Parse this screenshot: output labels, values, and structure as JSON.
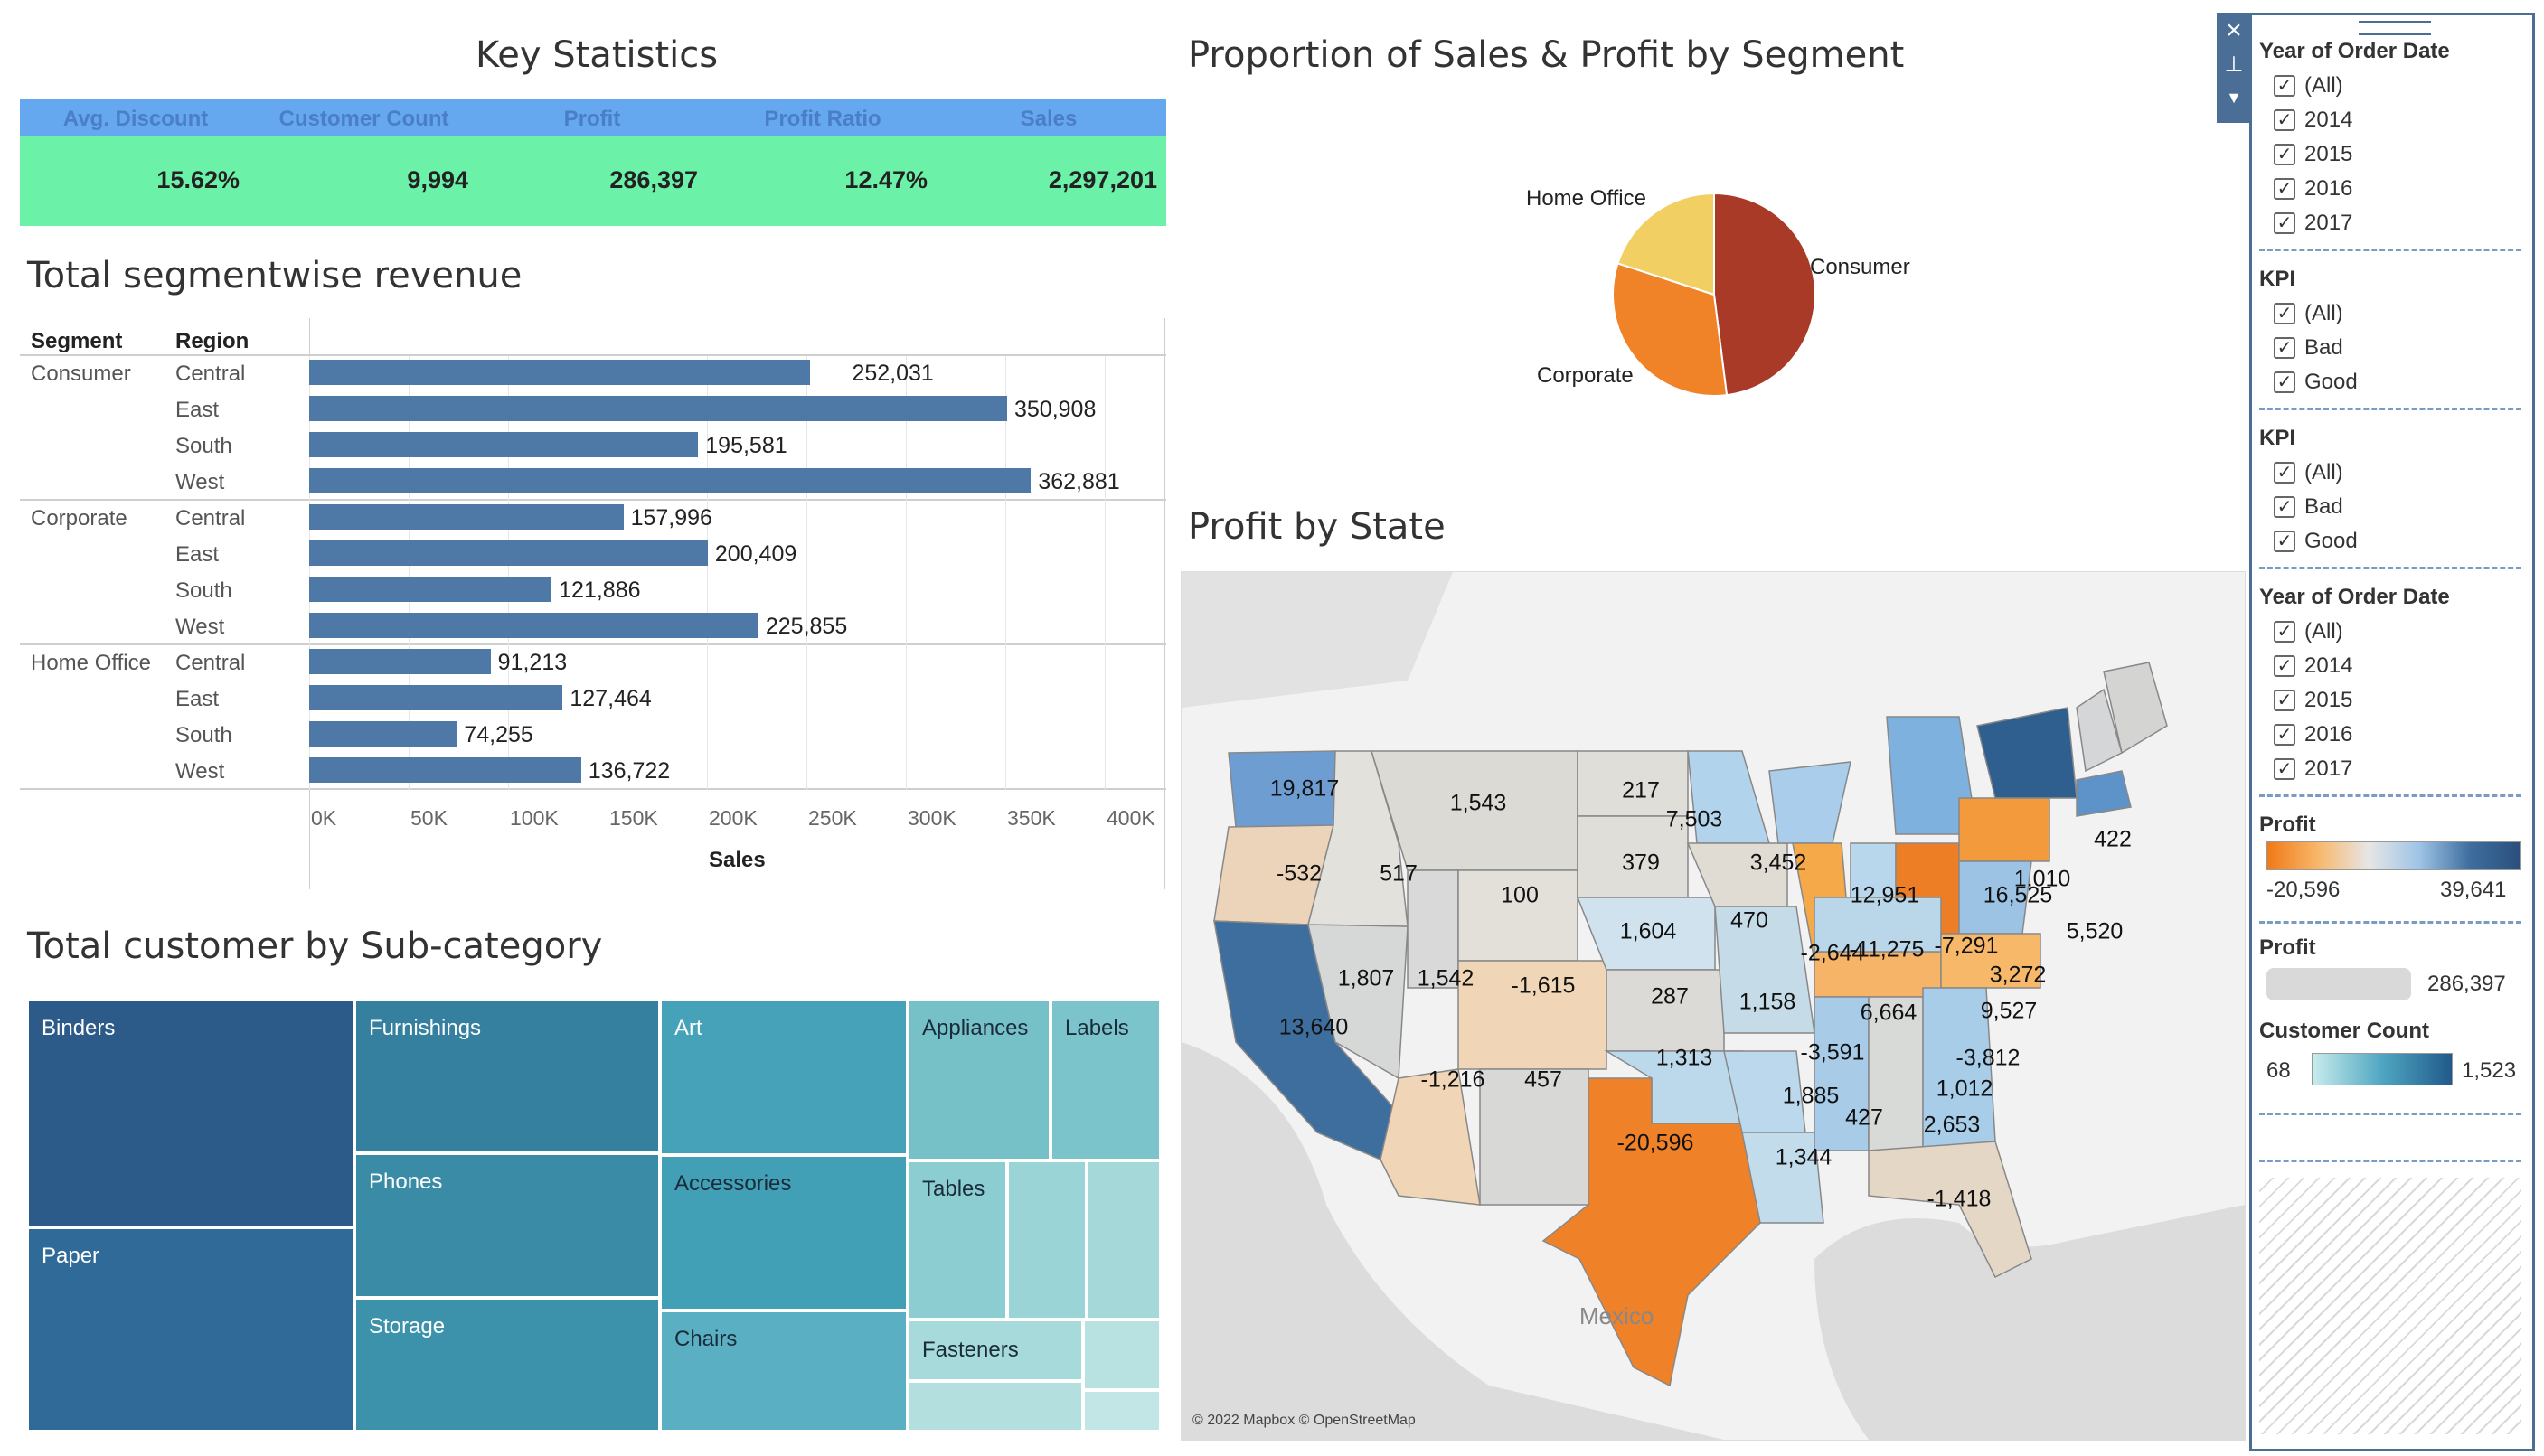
{
  "key_stats": {
    "title": "Key Statistics",
    "headers": [
      "Avg. Discount",
      "Customer Count",
      "Profit",
      "Profit Ratio",
      "Sales"
    ],
    "values": [
      "15.62%",
      "9,994",
      "286,397",
      "12.47%",
      "2,297,201"
    ]
  },
  "segment_revenue": {
    "title": "Total segmentwise revenue",
    "col_segment": "Segment",
    "col_region": "Region",
    "segments": [
      "Consumer",
      "Corporate",
      "Home Office"
    ],
    "regions": [
      "Central",
      "East",
      "South",
      "West"
    ],
    "value_labels": [
      "252,031",
      "350,908",
      "195,581",
      "362,881",
      "157,996",
      "200,409",
      "121,886",
      "225,855",
      "91,213",
      "127,464",
      "74,255",
      "136,722"
    ],
    "ticks": [
      "0K",
      "50K",
      "100K",
      "150K",
      "200K",
      "250K",
      "300K",
      "350K",
      "400K"
    ],
    "xlabel": "Sales"
  },
  "treemap": {
    "title": "Total customer by Sub-category",
    "labels": [
      "Binders",
      "Paper",
      "Furnishings",
      "Phones",
      "Storage",
      "Art",
      "Accessories",
      "Chairs",
      "Appliances",
      "Labels",
      "Tables",
      "Fasteners"
    ]
  },
  "pie": {
    "title": "Proportion of Sales & Profit by Segment",
    "labels": [
      "Home Office",
      "Consumer",
      "Corporate"
    ]
  },
  "map": {
    "title": "Profit by State",
    "labels": [
      "19,817",
      "-532",
      "1,543",
      "517",
      "217",
      "379",
      "100",
      "7,503",
      "3,452",
      "12,951",
      "470",
      "1,604",
      "-2,644",
      "-11,275",
      "-7,291",
      "16,525",
      "1,010",
      "422",
      "5,520",
      "3,272",
      "9,527",
      "6,664",
      "1,158",
      "287",
      "-1,615",
      "1,807",
      "1,542",
      "13,640",
      "-1,216",
      "457",
      "1,313",
      "-20,596",
      "1,885",
      "427",
      "-3,591",
      "-3,812",
      "1,012",
      "2,653",
      "1,344",
      "-1,418"
    ],
    "mexico_label": "Mexico",
    "attribution": "© 2022 Mapbox © OpenStreetMap"
  },
  "filters": {
    "year1_title": "Year of Order Date",
    "year_options": [
      "(All)",
      "2014",
      "2015",
      "2016",
      "2017"
    ],
    "kpi1_title": "KPI",
    "kpi_options": [
      "(All)",
      "Bad",
      "Good"
    ],
    "kpi2_title": "KPI",
    "year2_title": "Year of Order Date",
    "profit_title": "Profit",
    "profit_min": "-20,596",
    "profit_max": "39,641",
    "profit2_title": "Profit",
    "profit2_value": "286,397",
    "cust_title": "Customer Count",
    "cust_min": "68",
    "cust_max": "1,523",
    "check_glyph": "✓"
  },
  "chart_data": [
    {
      "type": "bar",
      "title": "Total segmentwise revenue",
      "categories": [
        "Consumer | Central",
        "Consumer | East",
        "Consumer | South",
        "Consumer | West",
        "Corporate | Central",
        "Corporate | East",
        "Corporate | South",
        "Corporate | West",
        "Home Office | Central",
        "Home Office | East",
        "Home Office | South",
        "Home Office | West"
      ],
      "values": [
        252031,
        350908,
        195581,
        362881,
        157996,
        200409,
        121886,
        225855,
        91213,
        127464,
        74255,
        136722
      ],
      "xlabel": "Sales",
      "xlim": [
        0,
        430000
      ],
      "color": "#4e79a7"
    },
    {
      "type": "pie",
      "title": "Proportion of Sales & Profit by Segment",
      "categories": [
        "Consumer",
        "Corporate",
        "Home Office"
      ],
      "values": [
        0.48,
        0.32,
        0.2
      ],
      "colors": [
        "#a83a27",
        "#f08227",
        "#f2cf63"
      ]
    }
  ]
}
